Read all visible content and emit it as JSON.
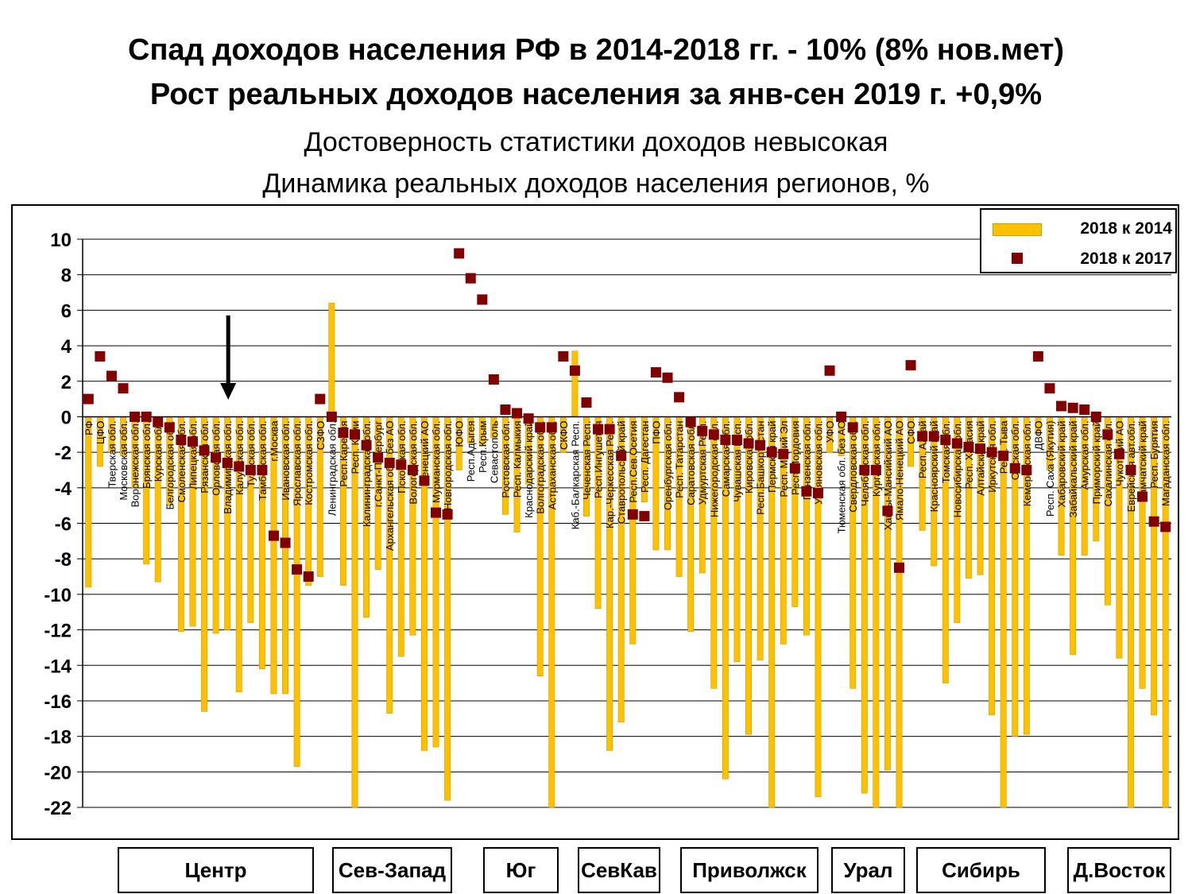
{
  "header": {
    "title_line1": "Спад доходов населения РФ в 2014-2018 гг. - 10% (8% нов.мет)",
    "title_line2": "Рост реальных доходов населения за янв-сен 2019 г. +0,9%",
    "subtitle_line1": "Достоверность статистики доходов невысокая",
    "subtitle_line2": "Динамика реальных доходов населения регионов, %"
  },
  "legend": {
    "bar_label": "2018 к 2014",
    "point_label": "2018 к 2017",
    "placement": "top-right"
  },
  "colors": {
    "bar": "#FFC000",
    "bar_edge": "#C8A000",
    "point": "#800000"
  },
  "region_groups": [
    {
      "label": "Центр"
    },
    {
      "label": "Сев-Запад"
    },
    {
      "label": "Юг"
    },
    {
      "label": "СевКав"
    },
    {
      "label": "Приволжск"
    },
    {
      "label": "Урал"
    },
    {
      "label": "Сибирь"
    },
    {
      "label": "Д.Восток"
    }
  ],
  "chart_data": {
    "type": "bar",
    "ylim": [
      -22,
      10
    ],
    "yticks": [
      10,
      8,
      6,
      4,
      2,
      0,
      -2,
      -4,
      -6,
      -8,
      -10,
      -12,
      -14,
      -16,
      -18,
      -20,
      -22
    ],
    "grid": true,
    "annotation": "arrow pointing down at Владимирская обл.",
    "categories": [
      "РФ",
      "ЦФО",
      "Тверская обл.",
      "Московская обл.",
      "Воронежская обл.",
      "Брянская обл.",
      "Курская обл.",
      "Белгородская обл.",
      "Смоленская обл.",
      "Липецкая обл.",
      "Рязанская обл.",
      "Орловская обл.",
      "Владимирская обл.",
      "Калужская обл.",
      "Тульская обл.",
      "Тамбовская обл.",
      "г.Москва",
      "Ивановская обл.",
      "Ярославская обл.",
      "Костромская обл.",
      "СЗФО",
      "Ленинградская обл.",
      "Респ.Карелия",
      "Респ. Коми",
      "Калининградская обл.",
      "г.Санкт-Петербург",
      "Архангельская обл. без АО",
      "Псковская обл.",
      "Вологодская обл.",
      "Ненецкий АО",
      "Мурманская обл.",
      "Новгородская обл.",
      "ЮФО",
      "Респ.Адыгея",
      "Респ.Крым",
      "Севастополь",
      "Ростовская обл.",
      "Респ. Калмыкия",
      "Краснодарский край",
      "Волгоградская обл.",
      "Астраханская обл.",
      "СКФО",
      "Каб.-Балкарская Респ.",
      "Чеченская Респ.",
      "Респ.Ингушетия",
      "Кар.-Черкесская Респ.",
      "Ставропольский край",
      "Респ.Сев.Осетия",
      "Респ. Дагестан",
      "ПФО",
      "Оренбургская обл.",
      "Респ. Татарстан",
      "Саратовская обл.",
      "Удмуртская Респ.",
      "Нижегородская обл.",
      "Самарская обл.",
      "Чувашская Респ.",
      "Кировская обл.",
      "Респ.Башкортостан",
      "Пермский край",
      "Респ. Марий Эл",
      "Респ.Мордовия",
      "Пензенская обл.",
      "Ульяновская обл.",
      "УФО",
      "Тюменская обл. без АО",
      "Свердловская обл.",
      "Челябинская обл.",
      "Курганская обл.",
      "Ханты-Мансийский АО",
      "Ямало-Ненецкий АО",
      "СФО",
      "Респ. Алтай",
      "Красноярский край",
      "Томская обл.",
      "Новосибирская обл.",
      "Респ. Хакасия",
      "Алтайский край",
      "Иркутская обл.",
      "Респ. Тыва",
      "Омская обл.",
      "Кемеровская обл.",
      "ДВФО",
      "Респ. Саха (Якутия)",
      "Хабаровский край",
      "Забайкальский край",
      "Амурская обл.",
      "Приморский край",
      "Сахалинская обл.",
      "Чукотский АО",
      "Еврейская авт.обл.",
      "Камчатский край",
      "Респ. Бурятия",
      "Магаданская обл."
    ],
    "series": [
      {
        "name": "2018 к 2014",
        "kind": "bar",
        "values": [
          -9.6,
          -2.8,
          -2.0,
          -2.2,
          -4.0,
          -8.3,
          -9.3,
          -5.0,
          -12.1,
          -11.8,
          -16.6,
          -12.2,
          -12.0,
          -15.5,
          -11.6,
          -14.2,
          -15.6,
          -15.6,
          -19.7,
          -9.5,
          -9.0,
          6.4,
          -9.5,
          -22.0,
          -11.3,
          -8.6,
          -16.7,
          -13.5,
          -12.3,
          -18.8,
          -18.6,
          -21.6,
          -3.0,
          -1.5,
          -1.6,
          -1.2,
          -5.5,
          -6.5,
          -3.8,
          -14.6,
          -22.0,
          -2.0,
          3.7,
          -5.6,
          -10.8,
          -18.8,
          -17.2,
          -12.8,
          -4.8,
          -7.5,
          -7.5,
          -9.0,
          -12.1,
          -8.8,
          -15.3,
          -20.4,
          -13.8,
          -17.9,
          -13.7,
          -22.0,
          -12.8,
          -10.7,
          -12.3,
          -21.4,
          -2.0,
          -2.2,
          -15.3,
          -21.2,
          -22.0,
          -19.9,
          -22.0,
          -2.8,
          -6.4,
          -8.4,
          -15.0,
          -11.6,
          -9.1,
          -8.9,
          -16.8,
          -22.0,
          -18.0,
          -17.9,
          -1.0,
          -3.0,
          -7.8,
          -13.4,
          -7.8,
          -7.0,
          -10.6,
          -13.6,
          -22.0,
          -15.3,
          -16.8,
          -22.0
        ]
      },
      {
        "name": "2018 к 2017",
        "kind": "point",
        "values": [
          1.0,
          3.4,
          2.3,
          1.6,
          0.0,
          0.0,
          -0.3,
          -0.6,
          -1.3,
          -1.4,
          -1.9,
          -2.3,
          -2.6,
          -2.8,
          -3.0,
          -3.0,
          -6.7,
          -7.1,
          -8.6,
          -9.0,
          1.0,
          0.0,
          -0.9,
          -1.0,
          -1.6,
          -2.3,
          -2.6,
          -2.7,
          -3.0,
          -3.6,
          -5.4,
          -5.5,
          9.2,
          7.8,
          6.6,
          2.1,
          0.4,
          0.2,
          -0.1,
          -0.6,
          -0.6,
          3.4,
          2.6,
          0.8,
          -0.7,
          -0.7,
          -2.2,
          -5.5,
          -5.6,
          2.5,
          2.2,
          1.1,
          -0.3,
          -0.8,
          -1.0,
          -1.3,
          -1.3,
          -1.5,
          -1.6,
          -2.0,
          -2.1,
          -2.9,
          -4.2,
          -4.3,
          2.6,
          0.0,
          -0.6,
          -3.0,
          -3.0,
          -5.3,
          -8.5,
          2.9,
          -1.1,
          -1.1,
          -1.3,
          -1.5,
          -1.7,
          -1.8,
          -2.0,
          -2.2,
          -2.9,
          -3.0,
          3.4,
          1.6,
          0.6,
          0.5,
          0.4,
          0.0,
          -1.0,
          -2.1,
          -3.0,
          -4.5,
          -5.9,
          -6.2
        ]
      }
    ]
  }
}
